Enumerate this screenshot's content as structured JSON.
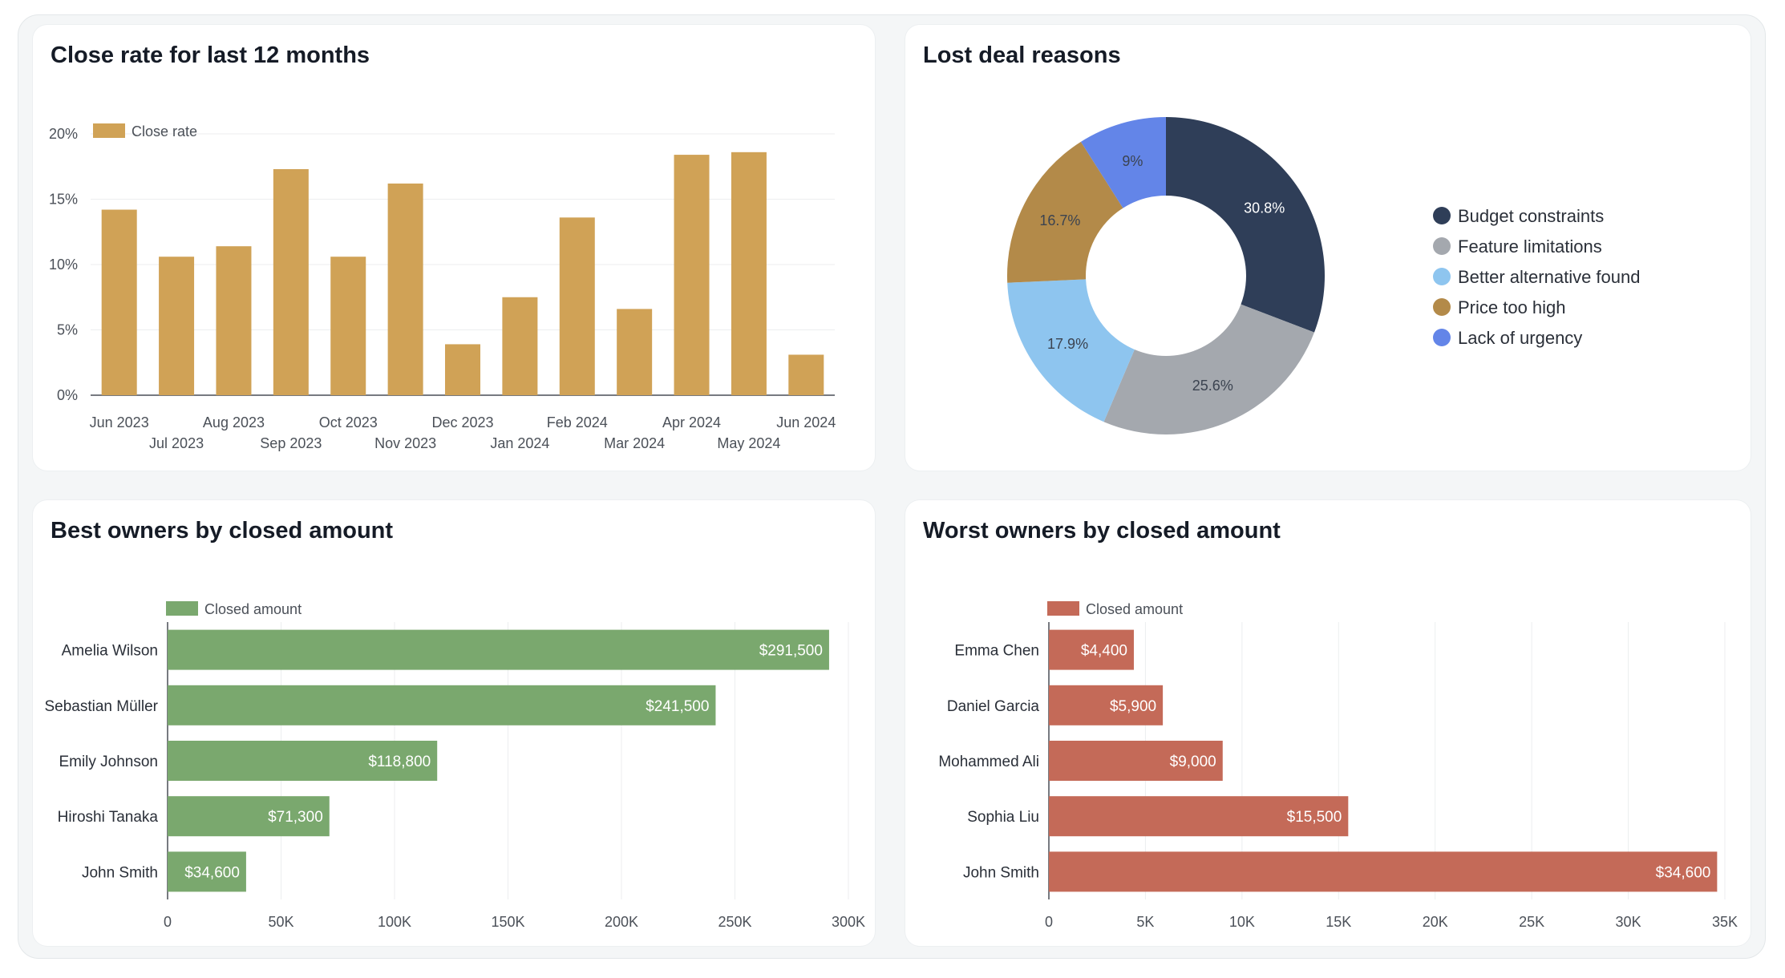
{
  "dashboard": {
    "close_rate": {
      "title": "Close rate for last 12 months",
      "legend": "Close rate"
    },
    "lost_reasons": {
      "title": "Lost deal reasons"
    },
    "best_owners": {
      "title": "Best owners by closed amount",
      "legend": "Closed amount"
    },
    "worst_owners": {
      "title": "Worst owners by closed amount",
      "legend": "Closed amount"
    }
  },
  "chart_data": [
    {
      "type": "bar",
      "title": "Close rate for last 12 months",
      "categories": [
        "Jun 2023",
        "Jul 2023",
        "Aug 2023",
        "Sep 2023",
        "Oct 2023",
        "Nov 2023",
        "Dec 2023",
        "Jan 2024",
        "Feb 2024",
        "Mar 2024",
        "Apr 2024",
        "May 2024",
        "Jun 2024"
      ],
      "series": [
        {
          "name": "Close rate",
          "values": [
            14.2,
            10.6,
            11.4,
            17.3,
            10.6,
            16.2,
            3.9,
            7.5,
            13.6,
            6.6,
            18.4,
            18.6,
            3.1
          ]
        }
      ],
      "ylim": [
        0,
        20
      ],
      "yticks": [
        "0%",
        "5%",
        "10%",
        "15%",
        "20%"
      ],
      "grid": true,
      "legend_position": "top-left",
      "color": "#d0a256"
    },
    {
      "type": "pie",
      "title": "Lost deal reasons",
      "donut": true,
      "slices": [
        {
          "name": "Budget constraints",
          "value": 30.8,
          "label": "30.8%",
          "color": "#2f3e58"
        },
        {
          "name": "Feature limitations",
          "value": 25.6,
          "label": "25.6%",
          "color": "#a4a8ae"
        },
        {
          "name": "Better alternative found",
          "value": 17.9,
          "label": "17.9%",
          "color": "#8ec5ef"
        },
        {
          "name": "Price too high",
          "value": 16.7,
          "label": "16.7%",
          "color": "#b38a49"
        },
        {
          "name": "Lack of urgency",
          "value": 9,
          "label": "9%",
          "color": "#6385e8"
        }
      ],
      "legend_position": "right"
    },
    {
      "type": "bar",
      "orientation": "horizontal",
      "title": "Best owners by closed amount",
      "categories": [
        "Amelia Wilson",
        "Sebastian Müller",
        "Emily Johnson",
        "Hiroshi Tanaka",
        "John Smith"
      ],
      "series": [
        {
          "name": "Closed amount",
          "values": [
            291500,
            241500,
            118800,
            71300,
            34600
          ],
          "labels": [
            "$291,500",
            "$241,500",
            "$118,800",
            "$71,300",
            "$34,600"
          ]
        }
      ],
      "xlim": [
        0,
        300000
      ],
      "xticks": [
        "0",
        "50K",
        "100K",
        "150K",
        "200K",
        "250K",
        "300K"
      ],
      "grid": true,
      "legend_position": "top-left",
      "color": "#7aa86e"
    },
    {
      "type": "bar",
      "orientation": "horizontal",
      "title": "Worst owners by closed amount",
      "categories": [
        "Emma Chen",
        "Daniel Garcia",
        "Mohammed Ali",
        "Sophia Liu",
        "John Smith"
      ],
      "series": [
        {
          "name": "Closed amount",
          "values": [
            4400,
            5900,
            9000,
            15500,
            34600
          ],
          "labels": [
            "$4,400",
            "$5,900",
            "$9,000",
            "$15,500",
            "$34,600"
          ]
        }
      ],
      "xlim": [
        0,
        35000
      ],
      "xticks": [
        "0",
        "5K",
        "10K",
        "15K",
        "20K",
        "25K",
        "30K",
        "35K"
      ],
      "grid": true,
      "legend_position": "top-left",
      "color": "#c46a58"
    }
  ]
}
